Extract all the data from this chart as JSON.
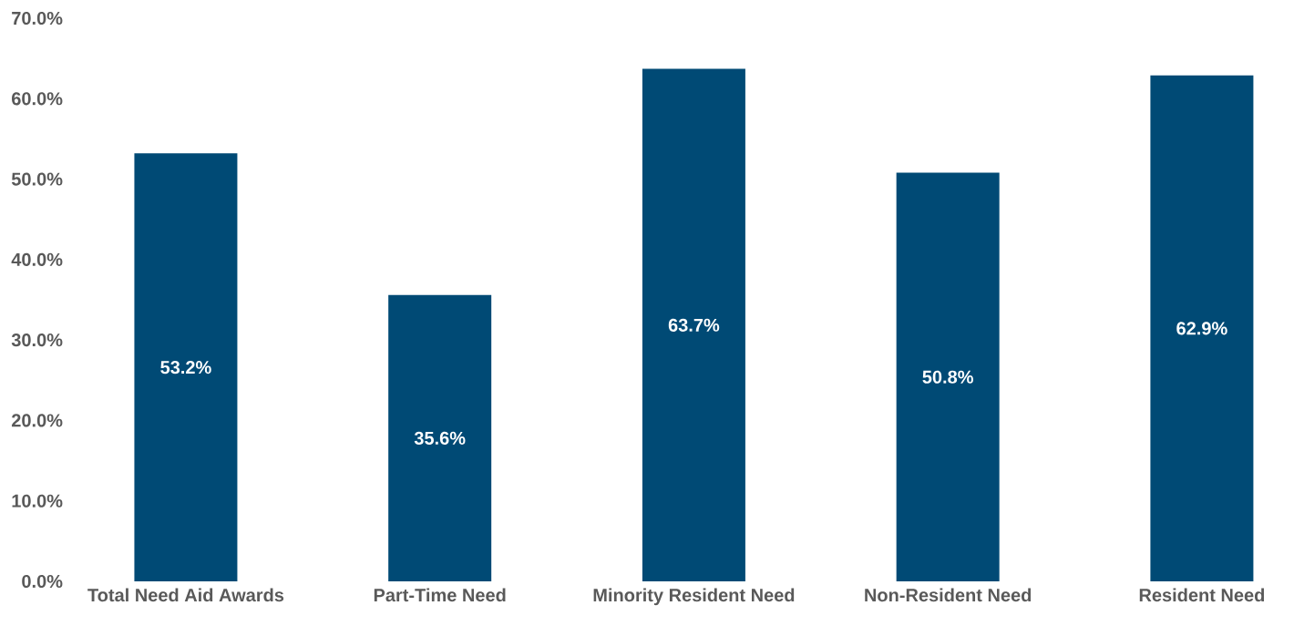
{
  "chart_data": {
    "type": "bar",
    "categories": [
      "Total Need Aid Awards",
      "Part-Time Need",
      "Minority Resident Need",
      "Non-Resident Need",
      "Resident Need"
    ],
    "values": [
      53.2,
      35.6,
      63.7,
      50.8,
      62.9
    ],
    "value_labels": [
      "53.2%",
      "35.6%",
      "63.7%",
      "50.8%",
      "62.9%"
    ],
    "color": "#004a75",
    "ylim": [
      0,
      70
    ],
    "yticks": [
      {
        "value": 0,
        "label": "0.0%"
      },
      {
        "value": 10,
        "label": "10.0%"
      },
      {
        "value": 20,
        "label": "20.0%"
      },
      {
        "value": 30,
        "label": "30.0%"
      },
      {
        "value": 40,
        "label": "40.0%"
      },
      {
        "value": 50,
        "label": "50.0%"
      },
      {
        "value": 60,
        "label": "60.0%"
      },
      {
        "value": 70,
        "label": "70.0%"
      }
    ]
  }
}
